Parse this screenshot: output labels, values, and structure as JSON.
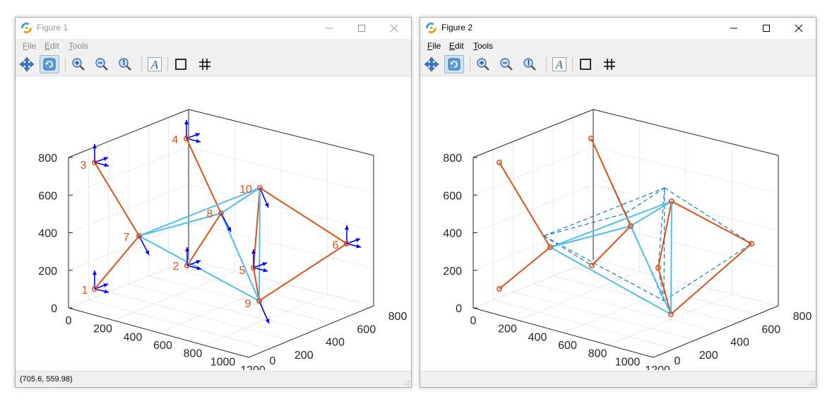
{
  "figure1": {
    "title": "Figure 1",
    "menus": [
      {
        "label": "File",
        "accel": "F",
        "rest": "ile"
      },
      {
        "label": "Edit",
        "accel": "E",
        "rest": "dit"
      },
      {
        "label": "Tools",
        "accel": "T",
        "rest": "ools"
      }
    ],
    "status": "(705.6, 559.98)",
    "ticks_z": [
      "0",
      "200",
      "400",
      "600",
      "800"
    ],
    "ticks_x": [
      "0",
      "200",
      "400",
      "600",
      "800",
      "1000",
      "1200"
    ],
    "ticks_y": [
      "0",
      "200",
      "400",
      "600",
      "800"
    ],
    "node_labels": [
      "1",
      "2",
      "3",
      "4",
      "5",
      "6",
      "7",
      "8",
      "9",
      "10"
    ]
  },
  "figure2": {
    "title": "Figure 2",
    "menus": [
      {
        "label": "File",
        "accel": "F",
        "rest": "ile"
      },
      {
        "label": "Edit",
        "accel": "E",
        "rest": "dit"
      },
      {
        "label": "Tools",
        "accel": "T",
        "rest": "ools"
      }
    ],
    "ticks_z": [
      "0",
      "200",
      "400",
      "600",
      "800"
    ],
    "ticks_x": [
      "0",
      "200",
      "400",
      "600",
      "800",
      "1000",
      "1200"
    ],
    "ticks_y": [
      "0",
      "200",
      "400",
      "600",
      "800"
    ]
  },
  "toolbar_tools": [
    "pan-icon",
    "rotate-icon",
    "zoom-in-icon",
    "zoom-out-icon",
    "zoom-reset-icon",
    "text-icon",
    "box-icon",
    "grid-icon"
  ],
  "colors": {
    "orange": "#d95319",
    "cyan": "#4dbeee",
    "blue": "#0000ff",
    "dashed": "#0072bd",
    "grid": "#dddddd"
  }
}
